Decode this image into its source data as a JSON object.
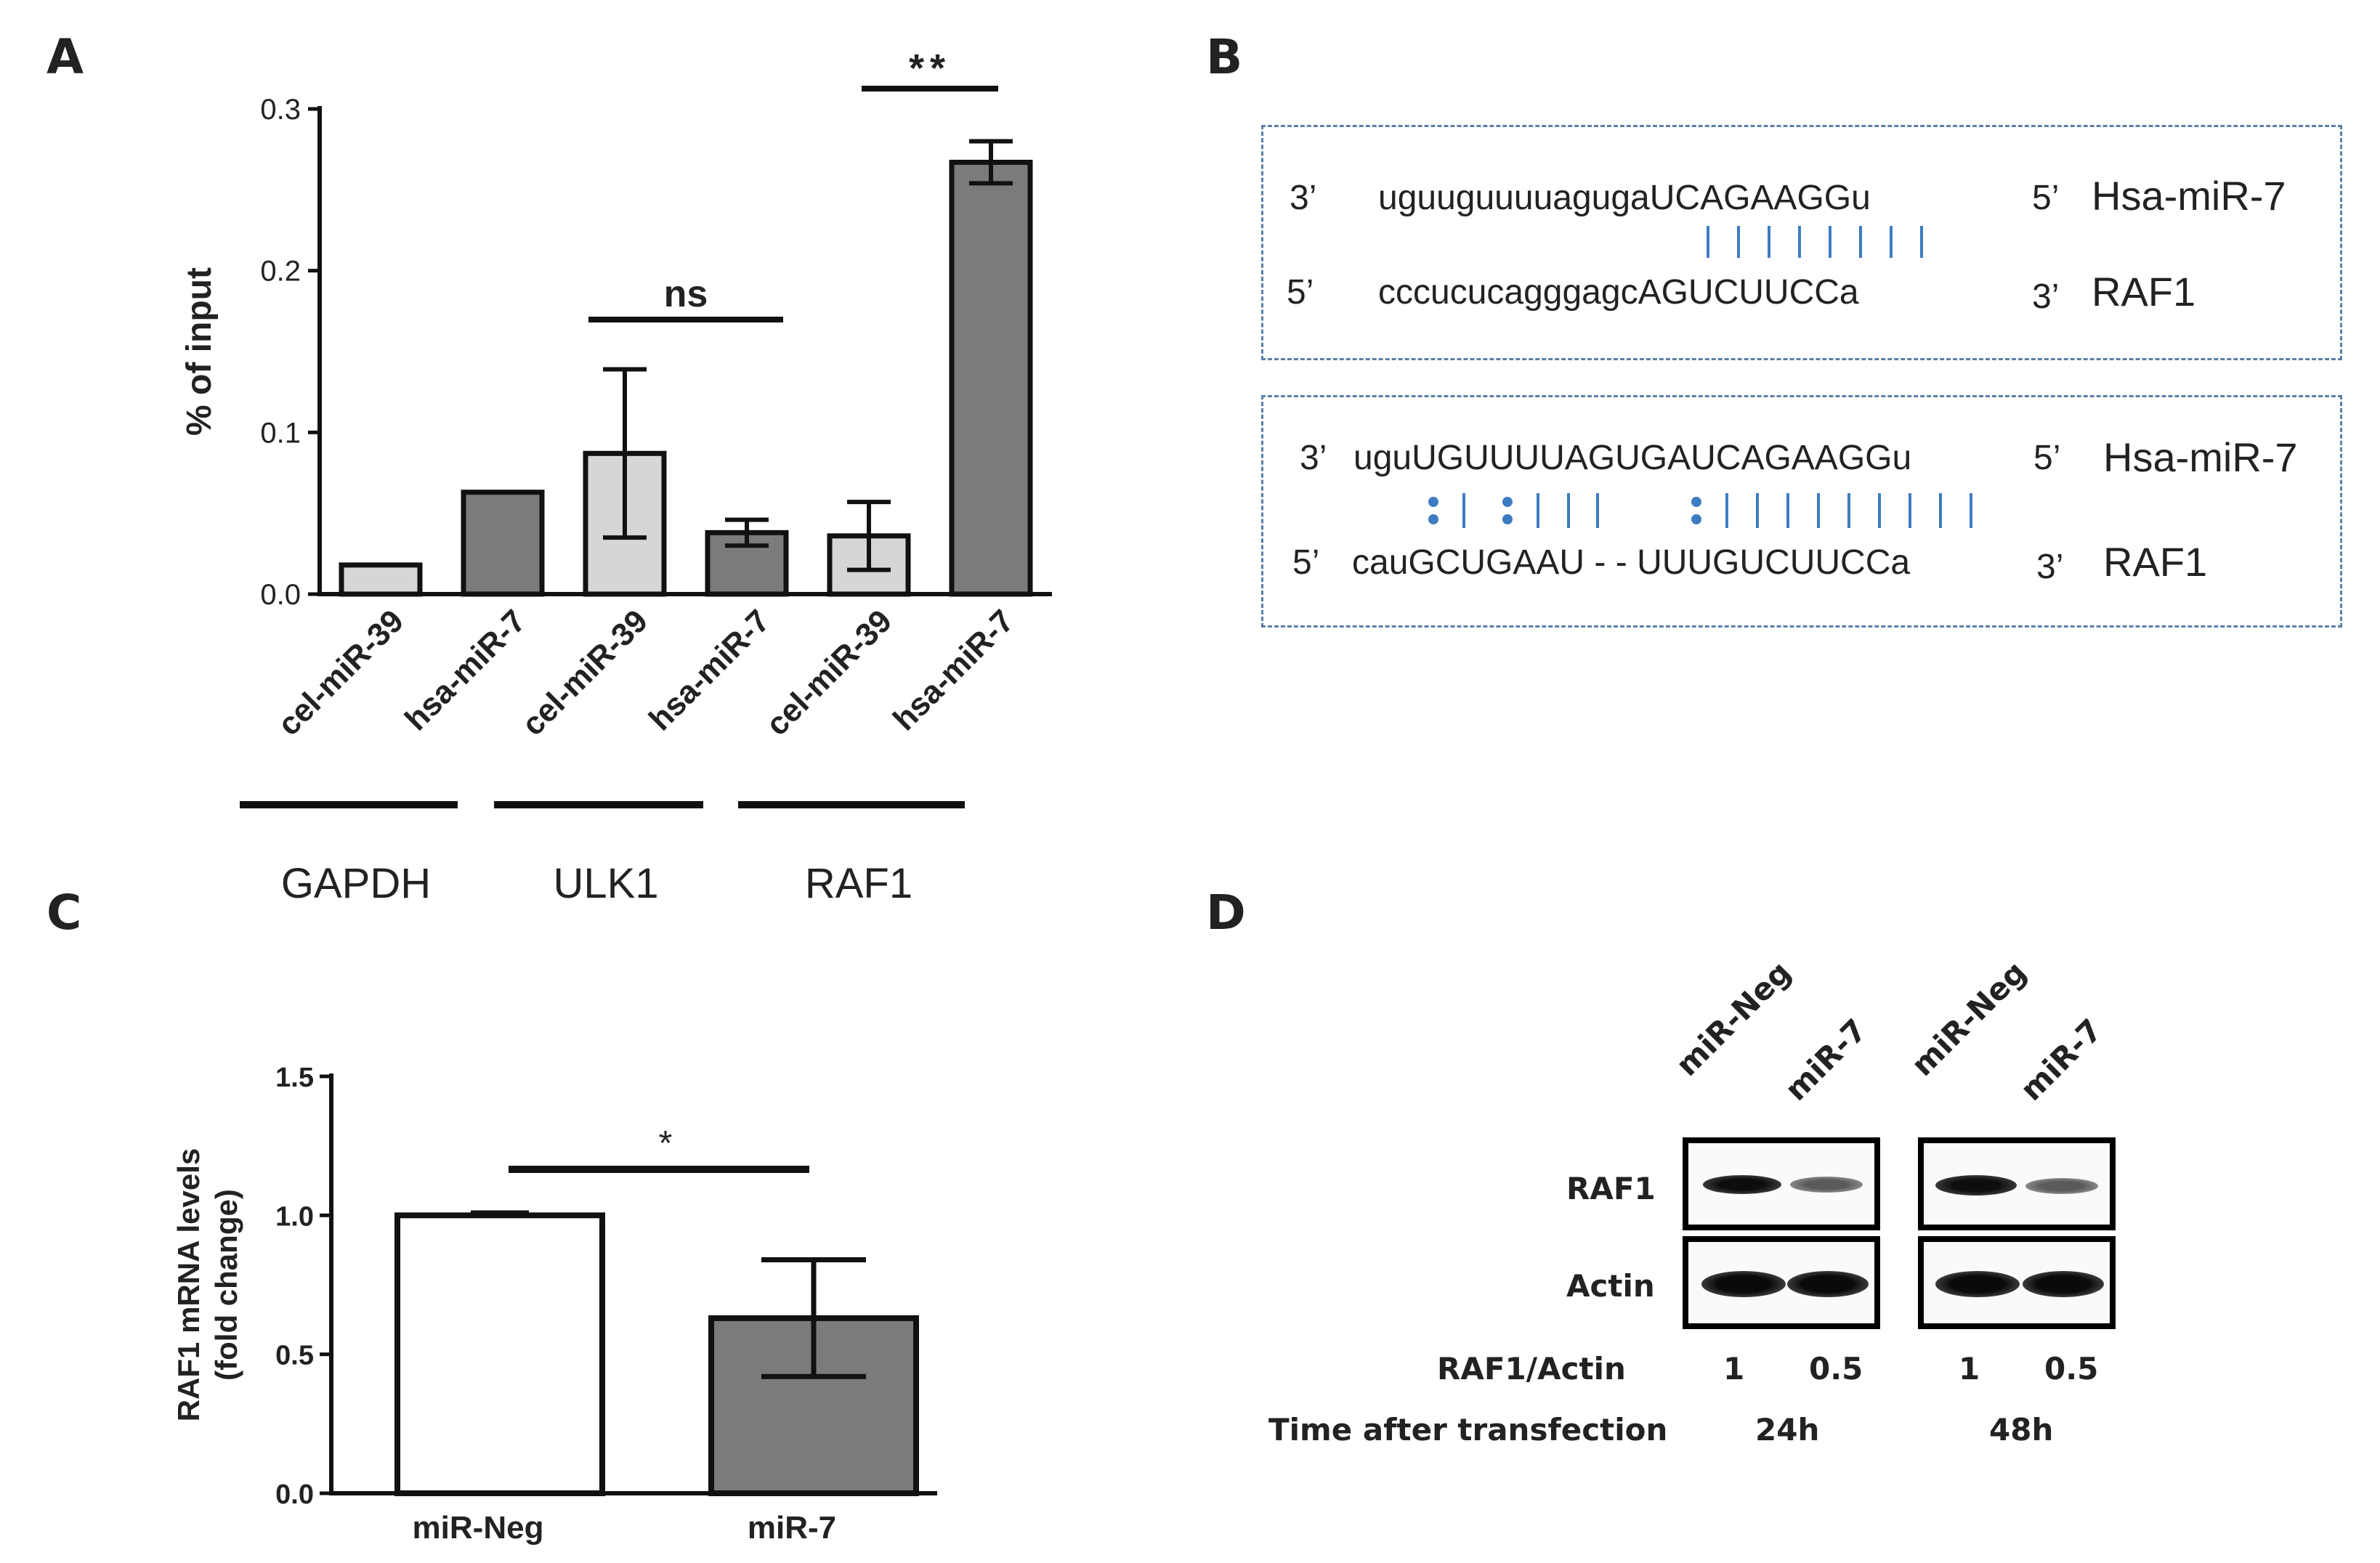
{
  "panels": {
    "a_letter": "A",
    "b_letter": "B",
    "c_letter": "C",
    "d_letter": "D"
  },
  "chart_data": [
    {
      "type": "bar",
      "panel": "A",
      "title": "",
      "ylabel": "% of input",
      "ylim": [
        0,
        0.3
      ],
      "yticks": [
        "0.0",
        "0.1",
        "0.2",
        "0.3"
      ],
      "categories": [
        "cel-miR-39",
        "hsa-miR-7",
        "cel-miR-39",
        "hsa-miR-7",
        "cel-miR-39",
        "hsa-miR-7"
      ],
      "values": [
        0.018,
        0.063,
        0.087,
        0.038,
        0.036,
        0.267
      ],
      "errors": [
        0,
        0,
        0.052,
        0.008,
        0.021,
        0.013
      ],
      "bar_colors": [
        "#d6d6d6",
        "#7b7b7b",
        "#d6d6d6",
        "#7b7b7b",
        "#d6d6d6",
        "#7b7b7b"
      ],
      "groups": [
        "GAPDH",
        "ULK1",
        "RAF1"
      ],
      "annotations": [
        "ns",
        "**"
      ]
    },
    {
      "type": "bar",
      "panel": "C",
      "title": "",
      "ylabel": "RAF1 mRNA levels (fold change)",
      "ylabel_line1": "RAF1 mRNA levels",
      "ylabel_line2": "(fold change)",
      "ylim": [
        0,
        1.5
      ],
      "yticks": [
        "0.0",
        "0.5",
        "1.0",
        "1.5"
      ],
      "categories": [
        "miR-Neg",
        "miR-7"
      ],
      "values": [
        1.0,
        0.63
      ],
      "errors": [
        0.01,
        0.21
      ],
      "bar_colors": [
        "#ffffff",
        "#7b7b7b"
      ],
      "annotations": [
        "*"
      ]
    }
  ],
  "panel_b": {
    "box1": {
      "top_prime_left": "3’",
      "top_seq": "uguuguuuuagugaUCAGAAGGu",
      "top_prime_right": "5’",
      "top_name": "Hsa-miR-7",
      "bottom_prime_left": "5’",
      "bottom_seq": "cccucucagggagcAGUCUUCCa",
      "bottom_prime_right": "3’",
      "bottom_name": "RAF1"
    },
    "box2": {
      "top_prime_left": "3’",
      "top_seq": "uguUGUUUUAGUGAUCAGAAGGu",
      "top_prime_right": "5’",
      "top_name": "Hsa-miR-7",
      "bottom_prime_left": "5’",
      "bottom_seq": "cauGCUGAAU - - UUUGUCUUCCa",
      "bottom_prime_right": "3’",
      "bottom_name": "RAF1"
    }
  },
  "panel_d": {
    "lanes": [
      "miR-Neg",
      "miR-7",
      "miR-Neg",
      "miR-7"
    ],
    "row_labels": [
      "RAF1",
      "Actin"
    ],
    "ratio_label": "RAF1/Actin",
    "ratios": [
      "1",
      "0.5",
      "1",
      "0.5"
    ],
    "time_label": "Time after transfection",
    "times": [
      "24h",
      "48h"
    ],
    "raf1_band_intensity": [
      1,
      0.5,
      1,
      0.5
    ]
  }
}
